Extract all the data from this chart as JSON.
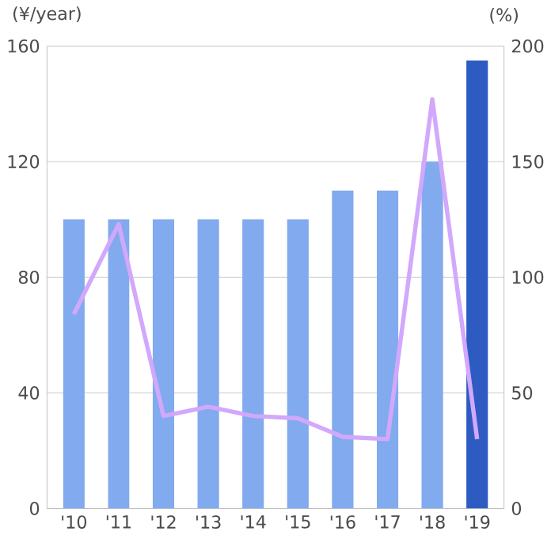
{
  "chart_data": {
    "type": "bar",
    "ylabel": "(¥/year)",
    "y2label": "(%)",
    "categories": [
      "'10",
      "'11",
      "'12",
      "'13",
      "'14",
      "'15",
      "'16",
      "'17",
      "'18",
      "'19"
    ],
    "series": [
      {
        "values": [
          100,
          100,
          100,
          100,
          100,
          100,
          110,
          110,
          120,
          155
        ],
        "colors": [
          "#82aaee",
          "#82aaee",
          "#82aaee",
          "#82aaee",
          "#82aaee",
          "#82aaee",
          "#82aaee",
          "#82aaee",
          "#82aaee",
          "#2e5bc2"
        ]
      },
      {
        "type": "line",
        "axis": "y2",
        "color": "#d2a8fc",
        "values": [
          84,
          123,
          40,
          44,
          40,
          39,
          31,
          30,
          177,
          30
        ]
      }
    ],
    "ylim": [
      0,
      160
    ],
    "yticks": [
      0,
      40,
      80,
      120,
      160
    ],
    "y2lim": [
      0,
      200
    ],
    "y2ticks": [
      0,
      50,
      100,
      150,
      200
    ],
    "grid": "y"
  }
}
